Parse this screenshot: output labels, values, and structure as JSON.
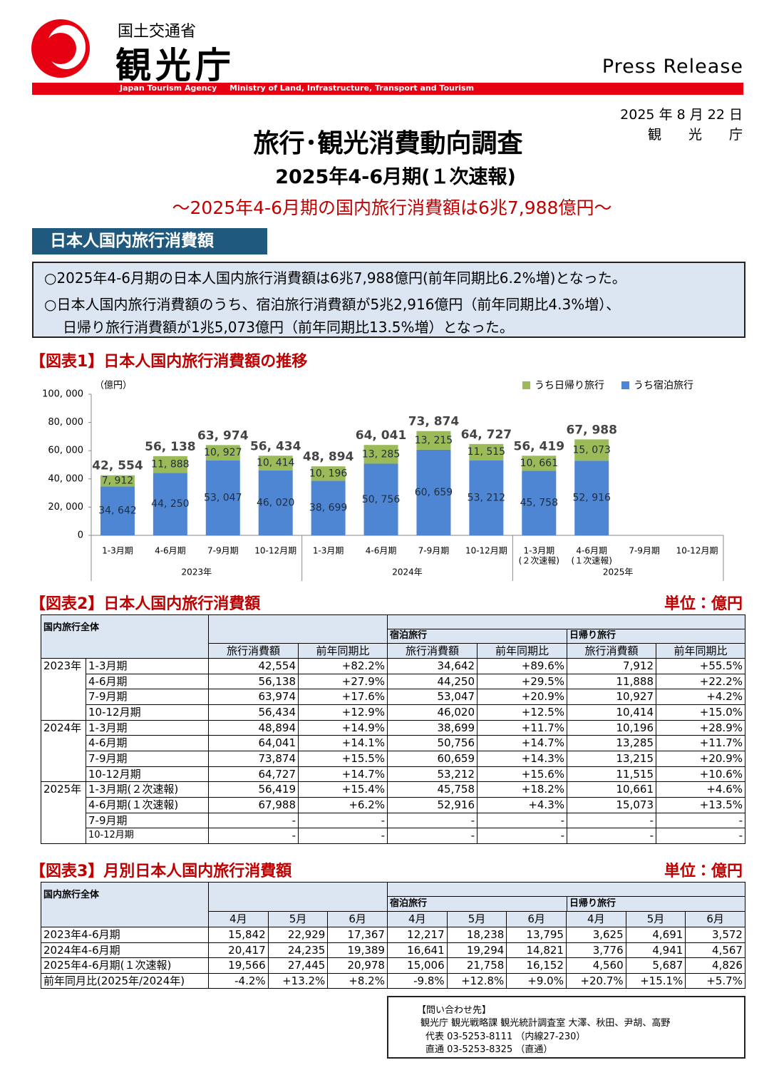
{
  "header": {
    "ministry": "国土交通省",
    "agency": "観光庁",
    "agency_en": "Japan Tourism Agency",
    "ministry_en": "Ministry of Land, Infrastructure, Transport and Tourism",
    "press": "Press Release",
    "date": "2025 年 8 月 22 日",
    "issuer": "観　　光　　庁"
  },
  "document": {
    "title": "旅行･観光消費動向調査",
    "subtitle": "2025年4-6月期(１次速報)",
    "headline": "～2025年4-6月期の国内旅行消費額は6兆7,988億円～",
    "section_title": "日本人国内旅行消費額",
    "summary": [
      "○2025年4-6月期の日本人国内旅行消費額は6兆7,988億円(前年同期比6.2%増)となった。",
      "○日本人国内旅行消費額のうち、宿泊旅行消費額が5兆2,916億円（前年同期比4.3%増）、",
      "日帰り旅行消費額が1兆5,073億円（前年同期比13.5%増）となった。"
    ]
  },
  "chart_data": {
    "type": "stacked_bar",
    "title": "【図表1】日本人国内旅行消費額の推移",
    "y_unit_label": "（億円）",
    "categories": [
      "1-3月期",
      "4-6月期",
      "7-9月期",
      "10-12月期",
      "1-3月期",
      "4-6月期",
      "7-9月期",
      "10-12月期",
      "1-3月期",
      "4-6月期",
      "7-9月期",
      "10-12月期"
    ],
    "category_notes": [
      null,
      null,
      null,
      null,
      null,
      null,
      null,
      null,
      "(２次速報)",
      "(１次速報)",
      null,
      null
    ],
    "groups": [
      "2023年",
      "2024年",
      "2025年"
    ],
    "series": [
      {
        "name": "うち宿泊旅行",
        "color": "#4f86d4",
        "values": [
          34642,
          44250,
          53047,
          46020,
          38699,
          50756,
          60659,
          53212,
          45758,
          52916,
          null,
          null
        ],
        "value_labels": [
          "34, 642",
          "44, 250",
          "53, 047",
          "46, 020",
          "38, 699",
          "50, 756",
          "60, 659",
          "53, 212",
          "45, 758",
          "52, 916",
          null,
          null
        ]
      },
      {
        "name": "うち日帰り旅行",
        "color": "#9bbb59",
        "values": [
          7912,
          11888,
          10927,
          10414,
          10196,
          13285,
          13215,
          11515,
          10661,
          15073,
          null,
          null
        ],
        "value_labels": [
          "7, 912",
          "11, 888",
          "10, 927",
          "10, 414",
          "10, 196",
          "13, 285",
          "13, 215",
          "11, 515",
          "10, 661",
          "15, 073",
          null,
          null
        ]
      }
    ],
    "totals": [
      42554,
      56138,
      63974,
      56434,
      48894,
      64041,
      73874,
      64727,
      56419,
      67988,
      null,
      null
    ],
    "total_labels": [
      "42, 554",
      "56, 138",
      "63, 974",
      "56, 434",
      "48, 894",
      "64, 041",
      "73, 874",
      "64, 727",
      "56, 419",
      "67, 988",
      null,
      null
    ],
    "ylim": [
      0,
      100000
    ],
    "yticks": [
      0,
      {
        "value": 20000,
        "label": "20, 000"
      },
      {
        "value": 40000,
        "label": "40, 000"
      },
      {
        "value": 60000,
        "label": "60, 000"
      },
      {
        "value": 80000,
        "label": "80, 000"
      },
      {
        "value": 100000,
        "label": "100, 000"
      }
    ],
    "grid": false,
    "legend": "top-right"
  },
  "table2": {
    "title": "【図表2】日本人国内旅行消費額",
    "unit": "単位：億円",
    "group_header": "国内旅行全体",
    "groups": [
      "宿泊旅行",
      "日帰り旅行"
    ],
    "columns": [
      "旅行消費額",
      "前年同期比",
      "旅行消費額",
      "前年同期比",
      "旅行消費額",
      "前年同期比"
    ],
    "years": [
      {
        "year": "2023年",
        "rows": [
          [
            "1-3月期",
            "42,554",
            "+82.2%",
            "34,642",
            "+89.6%",
            "7,912",
            "+55.5%"
          ],
          [
            "4-6月期",
            "56,138",
            "+27.9%",
            "44,250",
            "+29.5%",
            "11,888",
            "+22.2%"
          ],
          [
            "7-9月期",
            "63,974",
            "+17.6%",
            "53,047",
            "+20.9%",
            "10,927",
            "+4.2%"
          ],
          [
            "10-12月期",
            "56,434",
            "+12.9%",
            "46,020",
            "+12.5%",
            "10,414",
            "+15.0%"
          ]
        ]
      },
      {
        "year": "2024年",
        "rows": [
          [
            "1-3月期",
            "48,894",
            "+14.9%",
            "38,699",
            "+11.7%",
            "10,196",
            "+28.9%"
          ],
          [
            "4-6月期",
            "64,041",
            "+14.1%",
            "50,756",
            "+14.7%",
            "13,285",
            "+11.7%"
          ],
          [
            "7-9月期",
            "73,874",
            "+15.5%",
            "60,659",
            "+14.3%",
            "13,215",
            "+20.9%"
          ],
          [
            "10-12月期",
            "64,727",
            "+14.7%",
            "53,212",
            "+15.6%",
            "11,515",
            "+10.6%"
          ]
        ]
      },
      {
        "year": "2025年",
        "rows": [
          [
            "1-3月期(２次速報)",
            "56,419",
            "+15.4%",
            "45,758",
            "+18.2%",
            "10,661",
            "+4.6%"
          ],
          [
            "4-6月期(１次速報)",
            "67,988",
            "+6.2%",
            "52,916",
            "+4.3%",
            "15,073",
            "+13.5%"
          ],
          [
            "7-9月期",
            "-",
            "-",
            "-",
            "-",
            "-",
            "-"
          ],
          [
            "10-12月期",
            "-",
            "-",
            "-",
            "-",
            "-",
            "-"
          ]
        ]
      }
    ]
  },
  "table3": {
    "title": "【図表3】月別日本人国内旅行消費額",
    "unit": "単位：億円",
    "group_header": "国内旅行全体",
    "groups": [
      "宿泊旅行",
      "日帰り旅行"
    ],
    "columns": [
      "4月",
      "5月",
      "6月",
      "4月",
      "5月",
      "6月",
      "4月",
      "5月",
      "6月"
    ],
    "rows": [
      [
        "2023年4-6月期",
        "15,842",
        "22,929",
        "17,367",
        "12,217",
        "18,238",
        "13,795",
        "3,625",
        "4,691",
        "3,572"
      ],
      [
        "2024年4-6月期",
        "20,417",
        "24,235",
        "19,389",
        "16,641",
        "19,294",
        "14,821",
        "3,776",
        "4,941",
        "4,567"
      ],
      [
        "2025年4-6月期(１次速報)",
        "19,566",
        "27,445",
        "20,978",
        "15,006",
        "21,758",
        "16,152",
        "4,560",
        "5,687",
        "4,826"
      ],
      [
        "前年同月比(2025年/2024年)",
        "-4.2%",
        "+13.2%",
        "+8.2%",
        "-9.8%",
        "+12.8%",
        "+9.0%",
        "+20.7%",
        "+15.1%",
        "+5.7%"
      ]
    ]
  },
  "contact": [
    "【問い合わせ先】",
    "観光庁 観光戦略課 観光統計調査室  大澤、秋田、尹胡、高野",
    "代表 03-5253-8111 （内線27-230）",
    "直通 03-5253-8325 （直通）"
  ]
}
